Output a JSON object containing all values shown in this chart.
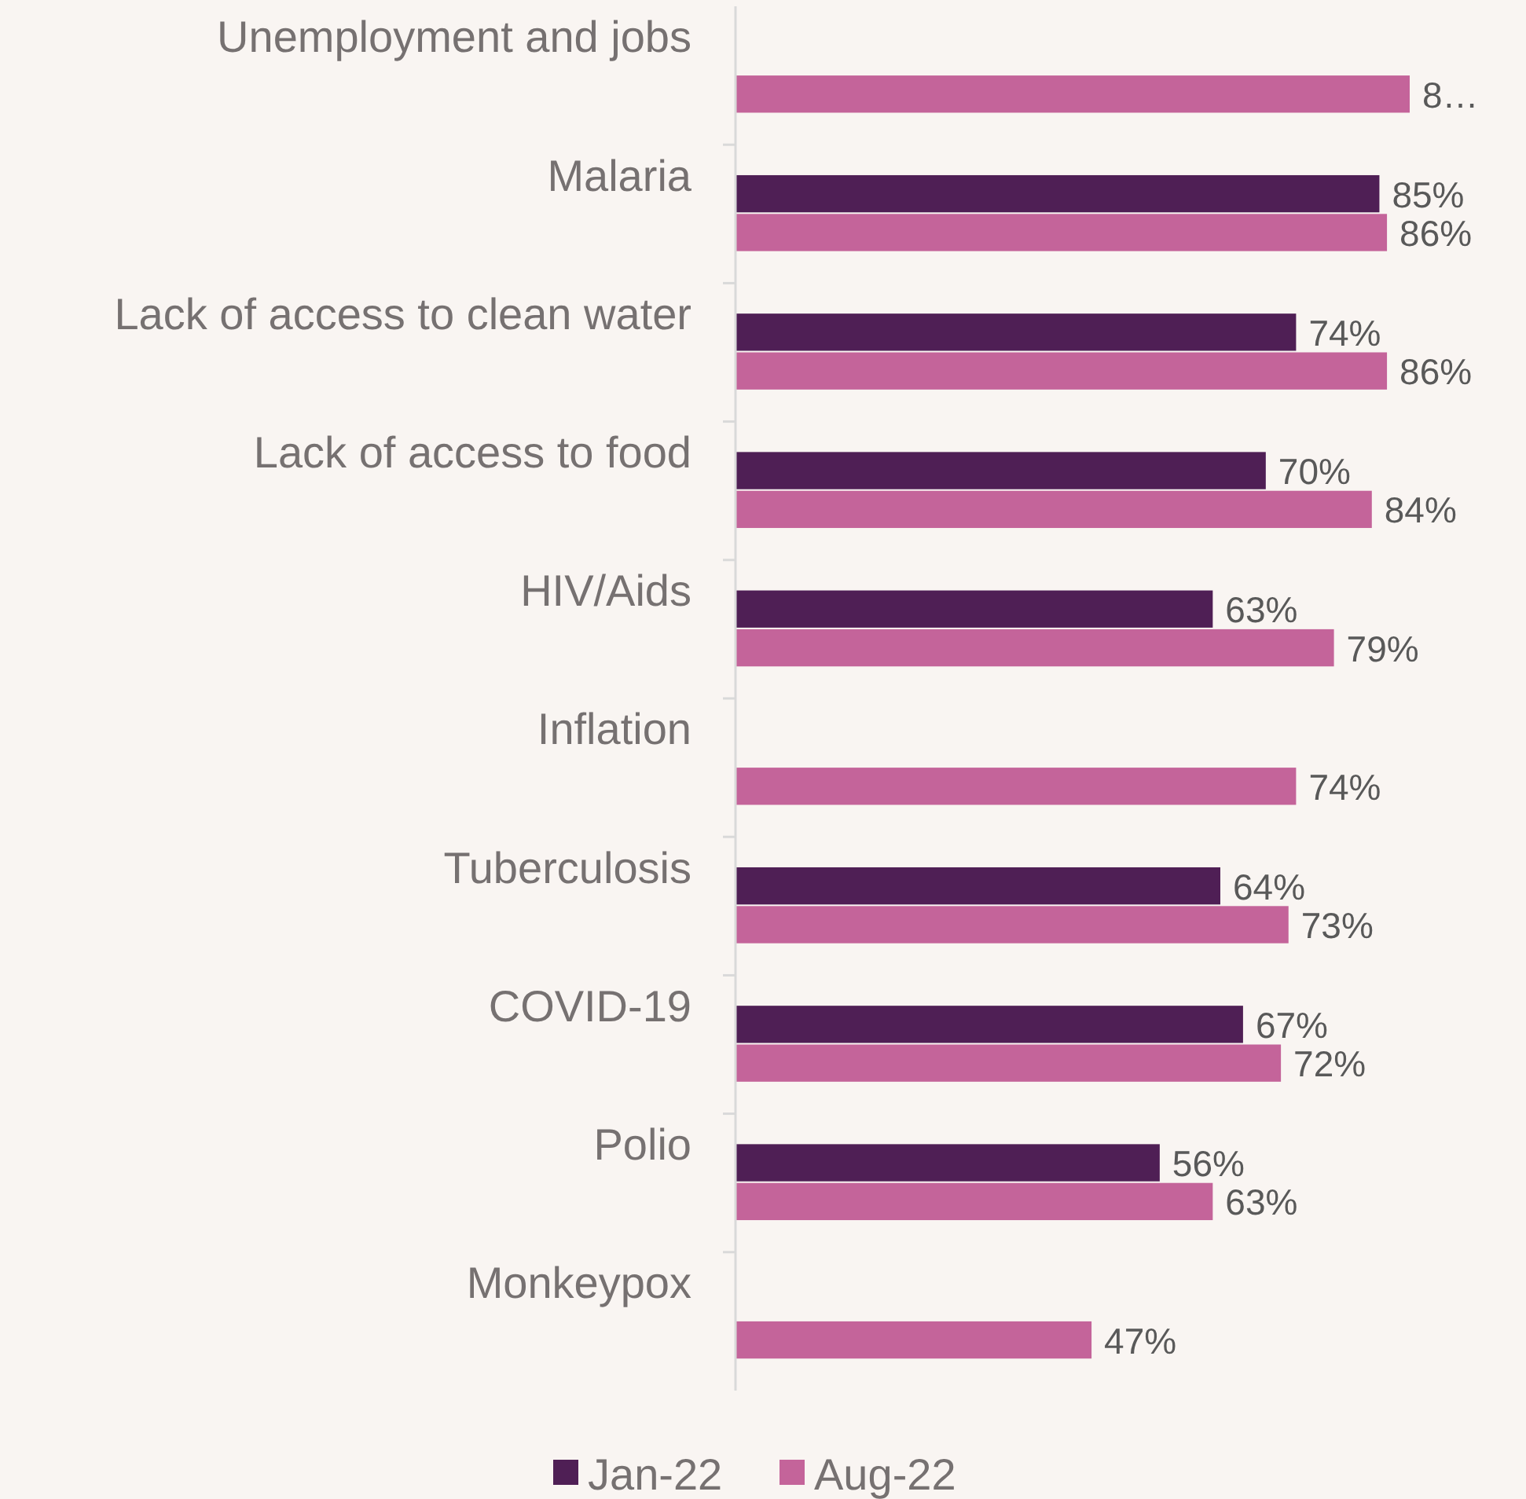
{
  "chart_data": {
    "type": "bar",
    "orientation": "horizontal",
    "categories": [
      "Unemployment and jobs",
      "Malaria",
      "Lack of access to clean water",
      "Lack of access to food",
      "HIV/Aids",
      "Inflation",
      "Tuberculosis",
      "COVID-19",
      "Polio",
      "Monkeypox"
    ],
    "series": [
      {
        "name": "Jan-22",
        "color": "#4f1f55",
        "values": [
          null,
          85,
          74,
          70,
          63,
          null,
          64,
          67,
          56,
          null
        ],
        "value_labels": [
          null,
          "85%",
          "74%",
          "70%",
          "63%",
          null,
          "64%",
          "67%",
          "56%",
          null
        ]
      },
      {
        "name": "Aug-22",
        "color": "#c4649a",
        "values": [
          89,
          86,
          86,
          84,
          79,
          74,
          73,
          72,
          63,
          47
        ],
        "value_labels": [
          "8…",
          "86%",
          "86%",
          "84%",
          "79%",
          "74%",
          "73%",
          "72%",
          "63%",
          "47%"
        ]
      }
    ],
    "tick_labels": "y",
    "legend": "bottom"
  }
}
